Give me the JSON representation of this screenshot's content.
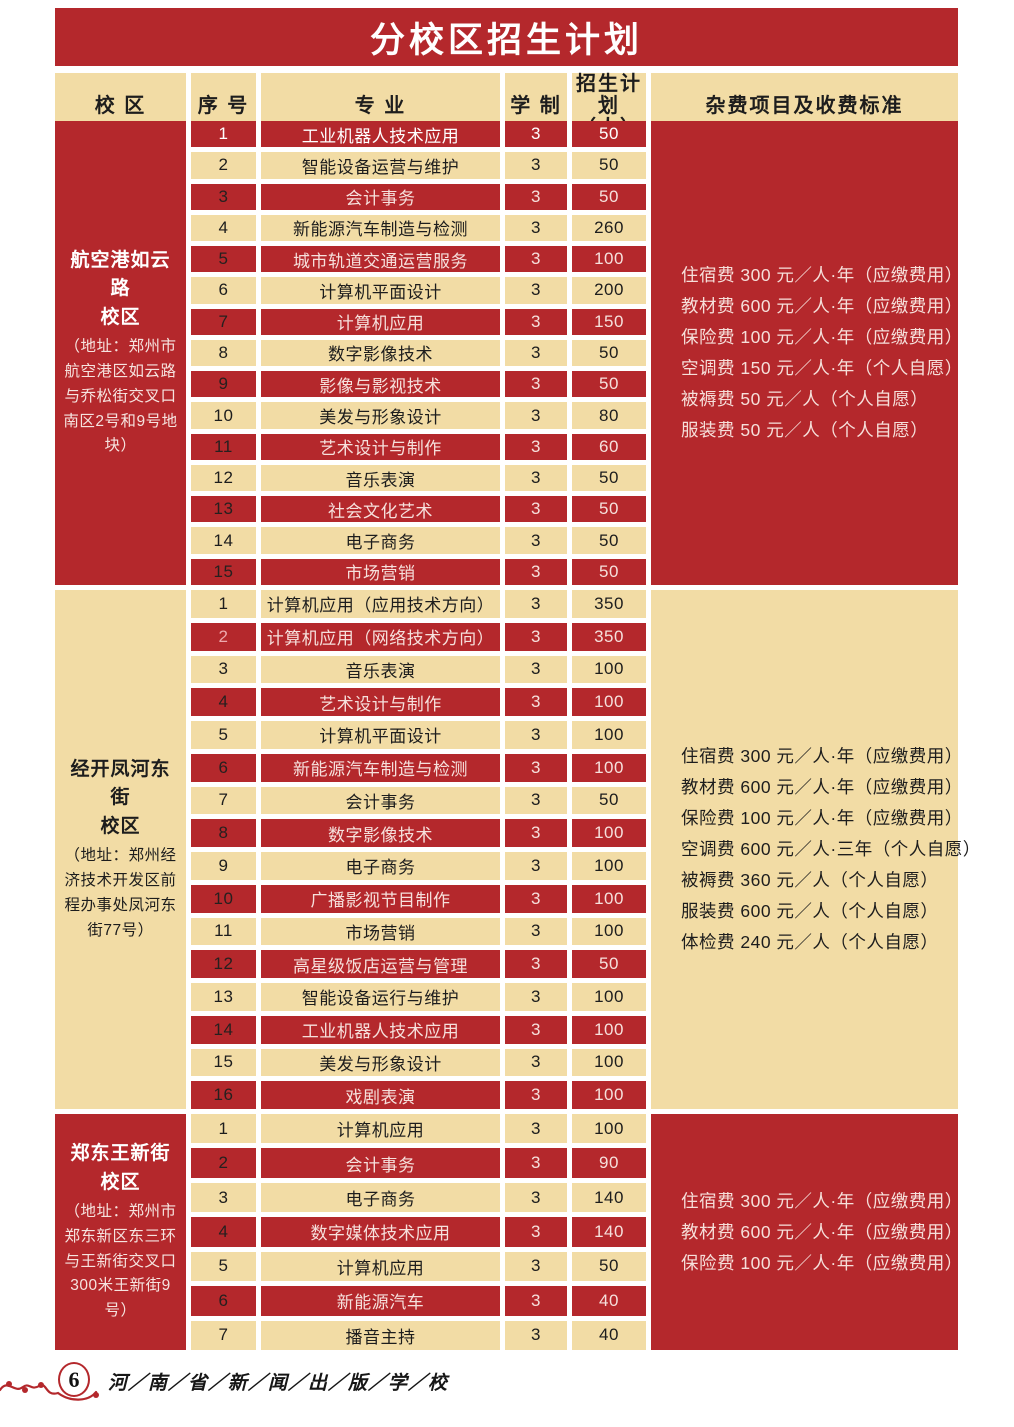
{
  "title": "分校区招生计划",
  "colors": {
    "red": "#b4282c",
    "cream": "#f2dca5"
  },
  "header": {
    "campus": "校 区",
    "index": "序 号",
    "major": "专 业",
    "years": "学 制",
    "plan": "招生计划（人）",
    "fees": "杂费项目及收费标准"
  },
  "sections": [
    {
      "name": "航空港如云路",
      "name2": "校区",
      "addr": "（地址：郑州市航空港区如云路与乔松街交叉口南区2号和9号地块）",
      "campus_shade": "red",
      "fees_shade": "red",
      "first_shade": "red",
      "rows": [
        {
          "n": "1",
          "major": "工业机器人技术应用",
          "years": "3",
          "plan": "50",
          "bright": true
        },
        {
          "n": "2",
          "major": "智能设备运营与维护",
          "years": "3",
          "plan": "50"
        },
        {
          "n": "3",
          "major": "会计事务",
          "years": "3",
          "plan": "50"
        },
        {
          "n": "4",
          "major": "新能源汽车制造与检测",
          "years": "3",
          "plan": "260"
        },
        {
          "n": "5",
          "major": "城市轨道交通运营服务",
          "years": "3",
          "plan": "100"
        },
        {
          "n": "6",
          "major": "计算机平面设计",
          "years": "3",
          "plan": "200"
        },
        {
          "n": "7",
          "major": "计算机应用",
          "years": "3",
          "plan": "150"
        },
        {
          "n": "8",
          "major": "数字影像技术",
          "years": "3",
          "plan": "50"
        },
        {
          "n": "9",
          "major": "影像与影视技术",
          "years": "3",
          "plan": "50"
        },
        {
          "n": "10",
          "major": "美发与形象设计",
          "years": "3",
          "plan": "80"
        },
        {
          "n": "11",
          "major": "艺术设计与制作",
          "years": "3",
          "plan": "60"
        },
        {
          "n": "12",
          "major": "音乐表演",
          "years": "3",
          "plan": "50"
        },
        {
          "n": "13",
          "major": "社会文化艺术",
          "years": "3",
          "plan": "50"
        },
        {
          "n": "14",
          "major": "电子商务",
          "years": "3",
          "plan": "50"
        },
        {
          "n": "15",
          "major": "市场营销",
          "years": "3",
          "plan": "50"
        }
      ],
      "fees": [
        "住宿费 300 元／人·年（应缴费用）",
        "教材费 600 元／人·年（应缴费用）",
        "保险费 100 元／人·年（应缴费用）",
        "空调费 150 元／人·年（个人自愿）",
        "被褥费 50 元／人（个人自愿）",
        "服装费 50 元／人（个人自愿）"
      ]
    },
    {
      "name": "经开凤河东街",
      "name2": "校区",
      "addr": "（地址：郑州经济技术开发区前程办事处凤河东街77号）",
      "campus_shade": "cream",
      "fees_shade": "cream",
      "first_shade": "cream",
      "rows": [
        {
          "n": "1",
          "major": "计算机应用（应用技术方向）",
          "years": "3",
          "plan": "350"
        },
        {
          "n": "2",
          "major": "计算机应用（网络技术方向）",
          "years": "3",
          "plan": "350",
          "num_style": "pink"
        },
        {
          "n": "3",
          "major": "音乐表演",
          "years": "3",
          "plan": "100"
        },
        {
          "n": "4",
          "major": "艺术设计与制作",
          "years": "3",
          "plan": "100"
        },
        {
          "n": "5",
          "major": "计算机平面设计",
          "years": "3",
          "plan": "100"
        },
        {
          "n": "6",
          "major": "新能源汽车制造与检测",
          "years": "3",
          "plan": "100"
        },
        {
          "n": "7",
          "major": "会计事务",
          "years": "3",
          "plan": "50"
        },
        {
          "n": "8",
          "major": "数字影像技术",
          "years": "3",
          "plan": "100"
        },
        {
          "n": "9",
          "major": "电子商务",
          "years": "3",
          "plan": "100"
        },
        {
          "n": "10",
          "major": "广播影视节目制作",
          "years": "3",
          "plan": "100"
        },
        {
          "n": "11",
          "major": "市场营销",
          "years": "3",
          "plan": "100"
        },
        {
          "n": "12",
          "major": "高星级饭店运营与管理",
          "years": "3",
          "plan": "50"
        },
        {
          "n": "13",
          "major": "智能设备运行与维护",
          "years": "3",
          "plan": "100"
        },
        {
          "n": "14",
          "major": "工业机器人技术应用",
          "years": "3",
          "plan": "100"
        },
        {
          "n": "15",
          "major": "美发与形象设计",
          "years": "3",
          "plan": "100"
        },
        {
          "n": "16",
          "major": "戏剧表演",
          "years": "3",
          "plan": "100"
        }
      ],
      "fees": [
        "住宿费 300 元／人·年（应缴费用）",
        "教材费 600 元／人·年（应缴费用）",
        "保险费 100 元／人·年（应缴费用）",
        "空调费 600 元／人·三年（个人自愿）",
        "被褥费 360 元／人（个人自愿）",
        "服装费 600 元／人（个人自愿）",
        "体检费 240 元／人（个人自愿）"
      ]
    },
    {
      "name": "郑东王新街",
      "name2": "校区",
      "addr": "（地址：郑州市郑东新区东三环与王新街交叉口300米王新街9号）",
      "campus_shade": "red",
      "fees_shade": "red",
      "first_shade": "cream",
      "rows": [
        {
          "n": "1",
          "major": "计算机应用",
          "years": "3",
          "plan": "100"
        },
        {
          "n": "2",
          "major": "会计事务",
          "years": "3",
          "plan": "90"
        },
        {
          "n": "3",
          "major": "电子商务",
          "years": "3",
          "plan": "140"
        },
        {
          "n": "4",
          "major": "数字媒体技术应用",
          "years": "3",
          "plan": "140"
        },
        {
          "n": "5",
          "major": "计算机应用",
          "years": "3",
          "plan": "50"
        },
        {
          "n": "6",
          "major": "新能源汽车",
          "years": "3",
          "plan": "40"
        },
        {
          "n": "7",
          "major": "播音主持",
          "years": "3",
          "plan": "40"
        }
      ],
      "fees": [
        "住宿费 300 元／人·年（应缴费用）",
        "教材费 600 元／人·年（应缴费用）",
        "保险费 100 元／人·年（应缴费用）"
      ]
    }
  ],
  "footer": {
    "page": "6",
    "school": "河／南／省／新／闻／出／版／学／校"
  }
}
